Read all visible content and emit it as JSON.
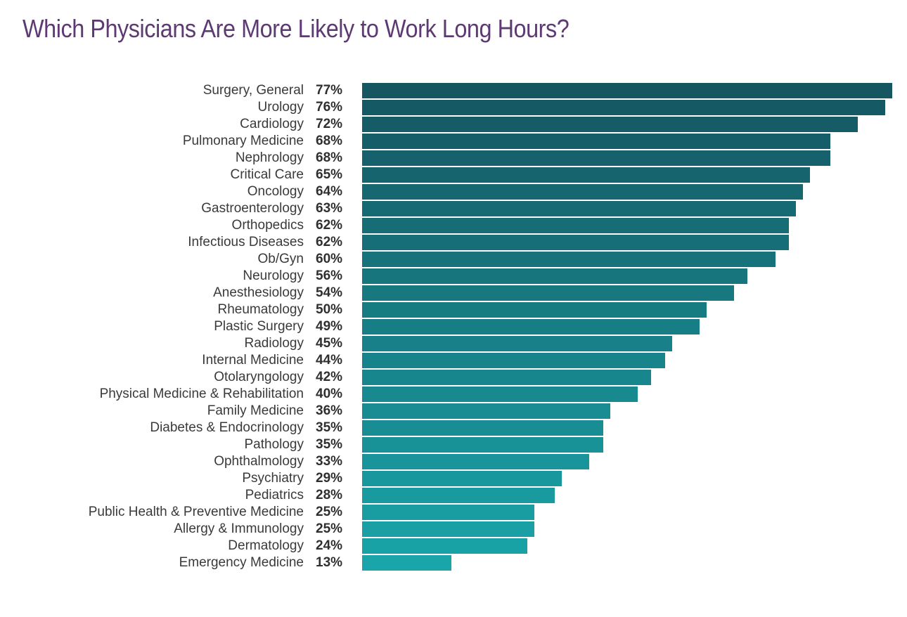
{
  "page": {
    "background": "#FFFFFF"
  },
  "chart_data": {
    "type": "bar",
    "orientation": "horizontal",
    "title": "Which Physicians Are More Likely to Work Long Hours?",
    "title_color": "#5E3A73",
    "label_color": "#3A3A3A",
    "value_color": "#2F2F2F",
    "bar_color_top": "#155661",
    "bar_color_bottom": "#19A5A9",
    "value_suffix": "%",
    "xlabel": "",
    "ylabel": "",
    "xlim": [
      0,
      77
    ],
    "grid": false,
    "legend": false,
    "categories": [
      "Surgery, General",
      "Urology",
      "Cardiology",
      "Pulmonary Medicine",
      "Nephrology",
      "Critical Care",
      "Oncology",
      "Gastroenterology",
      "Orthopedics",
      "Infectious Diseases",
      "Ob/Gyn",
      "Neurology",
      "Anesthesiology",
      "Rheumatology",
      "Plastic Surgery",
      "Radiology",
      "Internal Medicine",
      "Otolaryngology",
      "Physical Medicine & Rehabilitation",
      "Family Medicine",
      "Diabetes & Endocrinology",
      "Pathology",
      "Ophthalmology",
      "Psychiatry",
      "Pediatrics",
      "Public Health & Preventive Medicine",
      "Allergy & Immunology",
      "Dermatology",
      "Emergency Medicine"
    ],
    "values": [
      77,
      76,
      72,
      68,
      68,
      65,
      64,
      63,
      62,
      62,
      60,
      56,
      54,
      50,
      49,
      45,
      44,
      42,
      40,
      36,
      35,
      35,
      33,
      29,
      28,
      25,
      25,
      24,
      13
    ]
  }
}
